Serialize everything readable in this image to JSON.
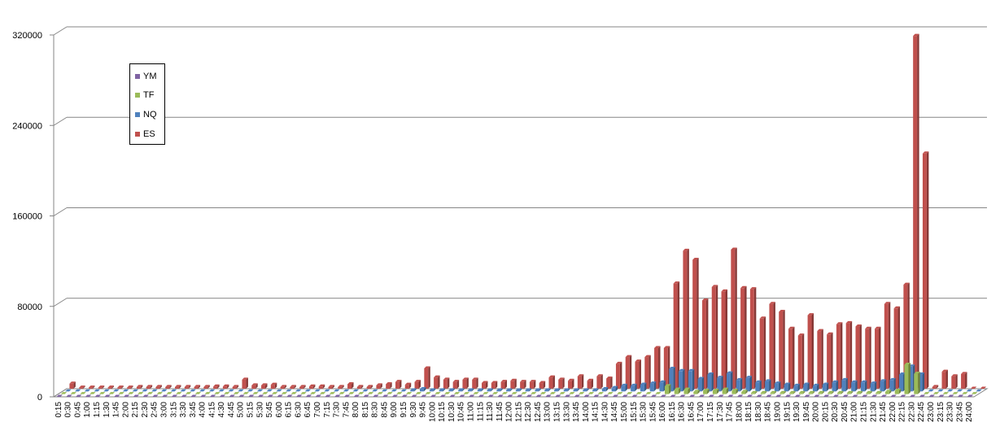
{
  "chart_data": {
    "type": "bar",
    "ylim": [
      0,
      320000
    ],
    "yticks": [
      0,
      80000,
      160000,
      240000,
      320000
    ],
    "grid": true,
    "legend_position": "top-left",
    "categories": [
      "0:15",
      "0:30",
      "0:45",
      "1:00",
      "1:15",
      "1:30",
      "1:45",
      "2:00",
      "2:15",
      "2:30",
      "2:45",
      "3:00",
      "3:15",
      "3:30",
      "3:45",
      "4:00",
      "4:15",
      "4:30",
      "4:45",
      "5:00",
      "5:15",
      "5:30",
      "5:45",
      "6:00",
      "6:15",
      "6:30",
      "6:45",
      "7:00",
      "7:15",
      "7:30",
      "7:45",
      "8:00",
      "8:15",
      "8:30",
      "8:45",
      "9:00",
      "9:15",
      "9:30",
      "9:45",
      "10:00",
      "10:15",
      "10:30",
      "10:45",
      "11:00",
      "11:15",
      "11:30",
      "11:45",
      "12:00",
      "12:15",
      "12:30",
      "12:45",
      "13:00",
      "13:15",
      "13:30",
      "13:45",
      "14:00",
      "14:15",
      "14:30",
      "14:45",
      "15:00",
      "15:15",
      "15:30",
      "15:45",
      "16:00",
      "16:15",
      "16:30",
      "16:45",
      "17:00",
      "17:15",
      "17:30",
      "17:45",
      "18:00",
      "18:15",
      "18:30",
      "18:45",
      "19:00",
      "19:15",
      "19:30",
      "19:45",
      "20:00",
      "20:15",
      "20:30",
      "20:45",
      "21:00",
      "21:15",
      "21:30",
      "21:45",
      "22:00",
      "22:15",
      "22:30",
      "22:45",
      "23:00",
      "23:15",
      "23:30",
      "23:45",
      "24:00"
    ],
    "series": [
      {
        "name": "YM",
        "color": "#7f63a3",
        "values": [
          0,
          0,
          0,
          0,
          0,
          0,
          0,
          0,
          0,
          0,
          0,
          0,
          0,
          0,
          0,
          0,
          0,
          0,
          0,
          0,
          0,
          0,
          0,
          0,
          0,
          0,
          0,
          0,
          0,
          0,
          0,
          0,
          0,
          0,
          0,
          0,
          0,
          0,
          0,
          0,
          0,
          0,
          0,
          0,
          0,
          0,
          0,
          0,
          0,
          0,
          0,
          0,
          0,
          0,
          0,
          0,
          0,
          0,
          0,
          0,
          0,
          0,
          0,
          0,
          0,
          0,
          0,
          0,
          0,
          0,
          0,
          0,
          0,
          0,
          0,
          0,
          0,
          0,
          0,
          0,
          0,
          0,
          0,
          0,
          0,
          0,
          0,
          0,
          0,
          0,
          0,
          0,
          0,
          0,
          0,
          0
        ]
      },
      {
        "name": "TF",
        "color": "#9bbb59",
        "values": [
          0,
          0,
          0,
          0,
          0,
          0,
          0,
          0,
          0,
          0,
          0,
          0,
          0,
          0,
          0,
          0,
          0,
          0,
          0,
          0,
          0,
          0,
          0,
          0,
          0,
          0,
          0,
          0,
          0,
          0,
          0,
          0,
          0,
          0,
          0,
          0,
          0,
          0,
          0,
          0,
          0,
          0,
          0,
          0,
          0,
          0,
          0,
          0,
          0,
          0,
          0,
          0,
          0,
          0,
          0,
          0,
          0,
          0,
          0,
          0,
          0,
          0,
          0,
          7000,
          4000,
          4000,
          2000,
          3000,
          3000,
          4000,
          3000,
          2000,
          1000,
          1000,
          1000,
          1000,
          1000,
          1000,
          1000,
          1000,
          1000,
          1000,
          1000,
          1000,
          1000,
          1000,
          2000,
          3000,
          26000,
          18000,
          0,
          0,
          0,
          0,
          0,
          0
        ]
      },
      {
        "name": "NQ",
        "color": "#4f81bd",
        "values": [
          0,
          0,
          0,
          0,
          0,
          0,
          0,
          0,
          0,
          0,
          0,
          0,
          0,
          0,
          0,
          0,
          0,
          0,
          0,
          0,
          0,
          0,
          0,
          0,
          0,
          0,
          0,
          0,
          0,
          0,
          0,
          0,
          0,
          0,
          0,
          0,
          1000,
          2000,
          1000,
          1000,
          1000,
          1000,
          1000,
          1000,
          1000,
          1000,
          1000,
          1000,
          1000,
          1000,
          1000,
          1000,
          1000,
          1000,
          1000,
          1000,
          2000,
          3000,
          5000,
          5000,
          6000,
          7000,
          8000,
          20000,
          18000,
          18000,
          11000,
          15000,
          12000,
          16000,
          10000,
          12000,
          8000,
          9000,
          7000,
          6000,
          5000,
          6000,
          5000,
          6000,
          8000,
          10000,
          8000,
          8000,
          7000,
          9000,
          10000,
          15000,
          22000,
          15000,
          0,
          0,
          0,
          0,
          0,
          0
        ]
      },
      {
        "name": "ES",
        "color": "#c0504d",
        "values": [
          4500,
          1000,
          1000,
          1000,
          1000,
          1000,
          1000,
          1500,
          1500,
          1500,
          1500,
          1500,
          1500,
          1500,
          1500,
          2000,
          2000,
          1500,
          8000,
          3000,
          3000,
          3500,
          1500,
          1500,
          1500,
          2000,
          2000,
          1500,
          1500,
          4000,
          1500,
          1500,
          3000,
          4000,
          6000,
          3500,
          6000,
          18000,
          10000,
          8000,
          6000,
          8000,
          8000,
          5000,
          5000,
          6000,
          7000,
          6000,
          6000,
          5000,
          10000,
          8000,
          7000,
          11000,
          7000,
          11000,
          9000,
          22000,
          28000,
          24000,
          28000,
          36000,
          36000,
          93000,
          122000,
          114000,
          78000,
          90000,
          86000,
          123000,
          89000,
          88000,
          62000,
          75000,
          68000,
          53000,
          47000,
          65000,
          51000,
          48000,
          57000,
          58000,
          55000,
          53000,
          53000,
          75000,
          71000,
          92000,
          312000,
          208000,
          1500,
          15000,
          11000,
          13000,
          0,
          0
        ]
      }
    ]
  }
}
